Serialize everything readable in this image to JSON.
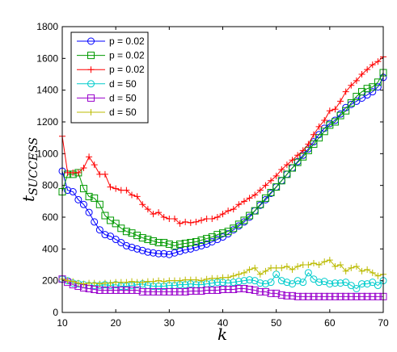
{
  "chart_data": {
    "type": "line",
    "xlabel": "k",
    "ylabel_main": "t",
    "ylabel_sub": "SUCCESS",
    "xlim": [
      10,
      70
    ],
    "ylim": [
      0,
      1800
    ],
    "xticks": [
      10,
      20,
      30,
      40,
      50,
      60,
      70
    ],
    "yticks": [
      0,
      200,
      400,
      600,
      800,
      1000,
      1200,
      1400,
      1600,
      1800
    ],
    "legend_position": "top-left",
    "series": [
      {
        "name": "p = 0.02",
        "color": "#0000ff",
        "marker": "circle",
        "x": [
          10,
          11,
          12,
          13,
          14,
          15,
          16,
          17,
          18,
          19,
          20,
          21,
          22,
          23,
          24,
          25,
          26,
          27,
          28,
          29,
          30,
          31,
          32,
          33,
          34,
          35,
          36,
          37,
          38,
          39,
          40,
          41,
          42,
          43,
          44,
          45,
          46,
          47,
          48,
          49,
          50,
          51,
          52,
          53,
          54,
          55,
          56,
          57,
          58,
          59,
          60,
          61,
          62,
          63,
          64,
          65,
          66,
          67,
          68,
          69,
          70
        ],
        "y": [
          890,
          770,
          760,
          710,
          680,
          630,
          570,
          520,
          490,
          480,
          460,
          440,
          420,
          410,
          400,
          390,
          380,
          375,
          370,
          370,
          365,
          375,
          385,
          395,
          400,
          410,
          420,
          430,
          445,
          460,
          475,
          495,
          520,
          545,
          570,
          600,
          640,
          675,
          710,
          750,
          790,
          830,
          870,
          910,
          950,
          990,
          1030,
          1075,
          1120,
          1160,
          1190,
          1210,
          1250,
          1290,
          1310,
          1330,
          1350,
          1370,
          1390,
          1420,
          1480
        ]
      },
      {
        "name": "p = 0.02",
        "color": "#009900",
        "marker": "square",
        "x": [
          10,
          11,
          12,
          13,
          14,
          15,
          16,
          17,
          18,
          19,
          20,
          21,
          22,
          23,
          24,
          25,
          26,
          27,
          28,
          29,
          30,
          31,
          32,
          33,
          34,
          35,
          36,
          37,
          38,
          39,
          40,
          41,
          42,
          43,
          44,
          45,
          46,
          47,
          48,
          49,
          50,
          51,
          52,
          53,
          54,
          55,
          56,
          57,
          58,
          59,
          60,
          61,
          62,
          63,
          64,
          65,
          66,
          67,
          68,
          69,
          70
        ],
        "y": [
          760,
          870,
          870,
          880,
          780,
          730,
          720,
          680,
          610,
          580,
          560,
          530,
          510,
          500,
          485,
          470,
          460,
          450,
          440,
          440,
          430,
          420,
          430,
          435,
          440,
          445,
          455,
          465,
          475,
          490,
          500,
          510,
          530,
          555,
          580,
          610,
          640,
          680,
          720,
          755,
          790,
          830,
          870,
          910,
          945,
          980,
          1020,
          1060,
          1100,
          1140,
          1180,
          1200,
          1240,
          1270,
          1320,
          1360,
          1390,
          1410,
          1420,
          1450,
          1510
        ]
      },
      {
        "name": "p = 0.02",
        "color": "#ff0000",
        "marker": "plus",
        "x": [
          10,
          11,
          12,
          13,
          14,
          15,
          16,
          17,
          18,
          19,
          20,
          21,
          22,
          23,
          24,
          25,
          26,
          27,
          28,
          29,
          30,
          31,
          32,
          33,
          34,
          35,
          36,
          37,
          38,
          39,
          40,
          41,
          42,
          43,
          44,
          45,
          46,
          47,
          48,
          49,
          50,
          51,
          52,
          53,
          54,
          55,
          56,
          57,
          58,
          59,
          60,
          61,
          62,
          63,
          64,
          65,
          66,
          67,
          68,
          69,
          70
        ],
        "y": [
          1110,
          880,
          880,
          880,
          910,
          980,
          930,
          870,
          870,
          790,
          780,
          770,
          770,
          740,
          730,
          680,
          650,
          620,
          630,
          600,
          590,
          590,
          560,
          570,
          565,
          570,
          580,
          590,
          590,
          600,
          620,
          640,
          650,
          680,
          700,
          720,
          740,
          770,
          800,
          830,
          860,
          900,
          930,
          960,
          990,
          1020,
          1060,
          1120,
          1170,
          1210,
          1270,
          1280,
          1330,
          1390,
          1430,
          1460,
          1500,
          1530,
          1560,
          1580,
          1610
        ]
      },
      {
        "name": "d = 50",
        "color": "#00cccc",
        "marker": "circle",
        "x": [
          10,
          11,
          12,
          13,
          14,
          15,
          16,
          17,
          18,
          19,
          20,
          21,
          22,
          23,
          24,
          25,
          26,
          27,
          28,
          29,
          30,
          31,
          32,
          33,
          34,
          35,
          36,
          37,
          38,
          39,
          40,
          41,
          42,
          43,
          44,
          45,
          46,
          47,
          48,
          49,
          50,
          51,
          52,
          53,
          54,
          55,
          56,
          57,
          58,
          59,
          60,
          61,
          62,
          63,
          64,
          65,
          66,
          67,
          68,
          69,
          70
        ],
        "y": [
          210,
          200,
          185,
          180,
          175,
          170,
          170,
          170,
          175,
          170,
          175,
          165,
          165,
          170,
          175,
          180,
          170,
          165,
          165,
          165,
          170,
          170,
          175,
          175,
          180,
          175,
          175,
          180,
          185,
          190,
          190,
          185,
          190,
          195,
          200,
          205,
          200,
          185,
          180,
          190,
          240,
          200,
          190,
          180,
          200,
          190,
          250,
          210,
          190,
          195,
          180,
          185,
          185,
          190,
          170,
          150,
          180,
          180,
          190,
          170,
          200
        ]
      },
      {
        "name": "d = 50",
        "color": "#9900cc",
        "marker": "square",
        "x": [
          10,
          11,
          12,
          13,
          14,
          15,
          16,
          17,
          18,
          19,
          20,
          21,
          22,
          23,
          24,
          25,
          26,
          27,
          28,
          29,
          30,
          31,
          32,
          33,
          34,
          35,
          36,
          37,
          38,
          39,
          40,
          41,
          42,
          43,
          44,
          45,
          46,
          47,
          48,
          49,
          50,
          51,
          52,
          53,
          54,
          55,
          56,
          57,
          58,
          59,
          60,
          61,
          62,
          63,
          64,
          65,
          66,
          67,
          68,
          69,
          70
        ],
        "y": [
          210,
          190,
          175,
          165,
          155,
          150,
          145,
          140,
          140,
          140,
          140,
          140,
          140,
          140,
          140,
          130,
          130,
          130,
          130,
          130,
          130,
          130,
          130,
          130,
          135,
          135,
          135,
          140,
          140,
          140,
          145,
          145,
          145,
          150,
          150,
          145,
          140,
          130,
          130,
          120,
          120,
          110,
          105,
          105,
          100,
          100,
          100,
          100,
          100,
          100,
          100,
          100,
          100,
          100,
          100,
          100,
          100,
          100,
          100,
          100,
          100
        ]
      },
      {
        "name": "d = 50",
        "color": "#bbbb00",
        "marker": "plus",
        "x": [
          10,
          11,
          12,
          13,
          14,
          15,
          16,
          17,
          18,
          19,
          20,
          21,
          22,
          23,
          24,
          25,
          26,
          27,
          28,
          29,
          30,
          31,
          32,
          33,
          34,
          35,
          36,
          37,
          38,
          39,
          40,
          41,
          42,
          43,
          44,
          45,
          46,
          47,
          48,
          49,
          50,
          51,
          52,
          53,
          54,
          55,
          56,
          57,
          58,
          59,
          60,
          61,
          62,
          63,
          64,
          65,
          66,
          67,
          68,
          69,
          70
        ],
        "y": [
          210,
          200,
          195,
          185,
          180,
          185,
          185,
          180,
          185,
          185,
          190,
          190,
          190,
          195,
          190,
          190,
          195,
          195,
          200,
          195,
          200,
          200,
          200,
          205,
          205,
          205,
          200,
          210,
          215,
          215,
          220,
          220,
          230,
          240,
          250,
          270,
          280,
          240,
          260,
          280,
          280,
          280,
          290,
          270,
          290,
          300,
          300,
          310,
          300,
          320,
          330,
          290,
          300,
          260,
          280,
          290,
          260,
          270,
          250,
          230,
          240
        ]
      }
    ]
  }
}
